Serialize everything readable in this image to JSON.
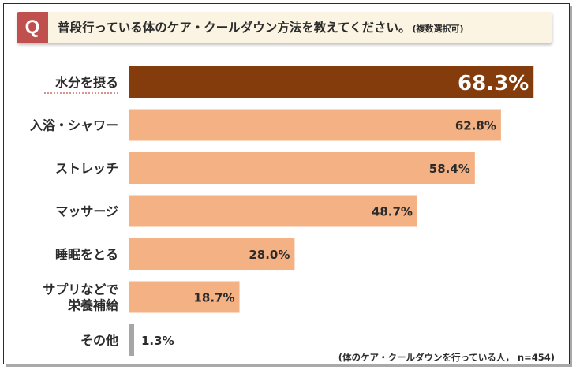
{
  "header": {
    "badge": "Q",
    "question": "普段行っている体のケア・クールダウン方法を教えてください。",
    "note": "(複数選択可)"
  },
  "footnote": "(体のケア・クールダウンを行っている人， n=454)",
  "colors": {
    "highlight_bar": "#843c0c",
    "bar": "#f4b183",
    "other_bar": "#a6a6a6",
    "badge": "#c0504d",
    "header_bg": "#fbf4e3",
    "highlight_underline": "#c0504d"
  },
  "chart_data": {
    "type": "bar",
    "orientation": "horizontal",
    "categories": [
      [
        "水分を摂る"
      ],
      [
        "入浴・シャワー"
      ],
      [
        "ストレッチ"
      ],
      [
        "マッサージ"
      ],
      [
        "睡眠をとる"
      ],
      [
        "サプリなどで",
        "栄養補給"
      ],
      [
        "その他"
      ]
    ],
    "values": [
      68.3,
      62.8,
      58.4,
      48.7,
      28.0,
      18.7,
      1.3
    ],
    "value_labels": [
      "68.3%",
      "62.8%",
      "58.4%",
      "48.7%",
      "28.0%",
      "18.7%",
      "1.3%"
    ],
    "unit": "%",
    "xlim": [
      0,
      70
    ],
    "highlight_index": 0,
    "other_index": 6,
    "grid": false,
    "legend": "none"
  }
}
